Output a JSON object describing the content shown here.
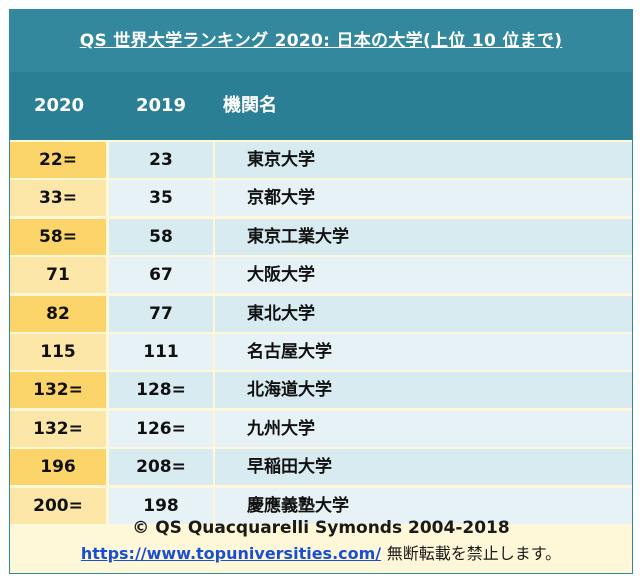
{
  "title": "QS 世界大学ランキング 2020: 日本の大学(上位 10 位まで)",
  "headers": {
    "col2020": "2020",
    "col2019": "2019",
    "name": "機関名"
  },
  "rows": [
    {
      "rank2020": "22=",
      "rank2019": "23",
      "name": "東京大学"
    },
    {
      "rank2020": "33=",
      "rank2019": "35",
      "name": "京都大学"
    },
    {
      "rank2020": "58=",
      "rank2019": "58",
      "name": "東京工業大学"
    },
    {
      "rank2020": "71",
      "rank2019": "67",
      "name": "大阪大学"
    },
    {
      "rank2020": "82",
      "rank2019": "77",
      "name": "東北大学"
    },
    {
      "rank2020": "115",
      "rank2019": "111",
      "name": "名古屋大学"
    },
    {
      "rank2020": "132=",
      "rank2019": "128=",
      "name": "北海道大学"
    },
    {
      "rank2020": "132=",
      "rank2019": "126=",
      "name": "九州大学"
    },
    {
      "rank2020": "196",
      "rank2019": "208=",
      "name": "早稲田大学"
    },
    {
      "rank2020": "200=",
      "rank2019": "198",
      "name": "慶應義塾大学"
    }
  ],
  "footer": {
    "copyright": "© QS Quacquarelli Symonds 2004-2018",
    "url": "https://www.topuniversities.com/",
    "notice": "無断転載を禁止します。"
  },
  "colors": {
    "header": "#2a7f95",
    "rank2020_bg": "#fbd46a",
    "row_bg": "#d7ebf0",
    "footer_bg": "#fff8d8"
  }
}
